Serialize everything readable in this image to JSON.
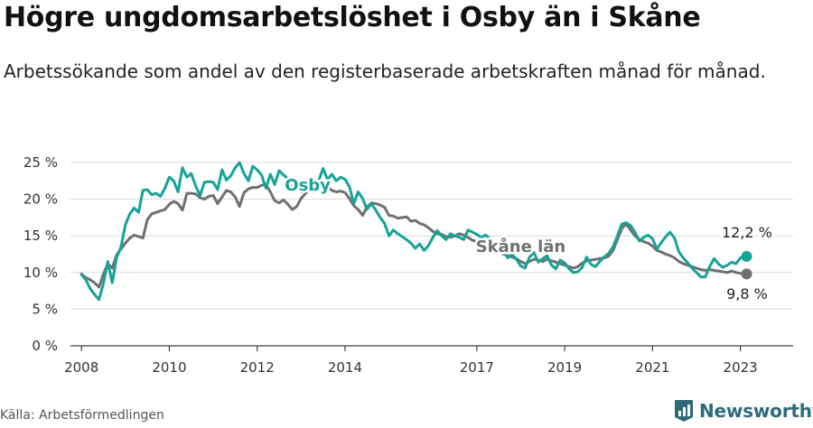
{
  "header": {
    "title": "Högre ungdomsarbetslöshet i Osby än i Skåne",
    "subtitle": "Arbetssökande som andel av den registerbaserade arbetskraften månad för månad."
  },
  "footer": {
    "source": "Källa: Arbetsförmedlingen",
    "brand": "Newsworthy"
  },
  "colors": {
    "osby": "#17a398",
    "skane": "#707070",
    "grid": "#d9d9d9",
    "brand": "#2e6b78"
  },
  "chart_data": {
    "type": "line",
    "title": "Högre ungdomsarbetslöshet i Osby än i Skåne",
    "xlabel": "",
    "ylabel": "",
    "xlim": [
      2007.75,
      2024.2
    ],
    "ylim": [
      0,
      25
    ],
    "y_ticks": [
      0,
      5,
      10,
      15,
      20,
      25
    ],
    "y_tick_labels": [
      "0 %",
      "5 %",
      "10 %",
      "15 %",
      "20 %",
      "25 %"
    ],
    "x_ticks": [
      2008,
      2010,
      2012,
      2014,
      2017,
      2019,
      2021,
      2023
    ],
    "x_tick_labels": [
      "2008",
      "2010",
      "2012",
      "2014",
      "2017",
      "2019",
      "2021",
      "2023"
    ],
    "grid": true,
    "series": [
      {
        "name": "Osby",
        "label": "Osby",
        "end_label": "12,2 %",
        "end_value": 12.2,
        "x": [
          2008.0,
          2008.1,
          2008.2,
          2008.3,
          2008.4,
          2008.5,
          2008.6,
          2008.7,
          2008.8,
          2008.9,
          2009.0,
          2009.1,
          2009.2,
          2009.3,
          2009.4,
          2009.5,
          2009.6,
          2009.7,
          2009.8,
          2009.9,
          2010.0,
          2010.1,
          2010.2,
          2010.3,
          2010.4,
          2010.5,
          2010.6,
          2010.7,
          2010.8,
          2010.9,
          2011.0,
          2011.1,
          2011.2,
          2011.3,
          2011.4,
          2011.5,
          2011.6,
          2011.7,
          2011.8,
          2011.9,
          2012.0,
          2012.1,
          2012.2,
          2012.3,
          2012.4,
          2012.5,
          2012.6,
          2012.7,
          2012.8,
          2012.9,
          2013.0,
          2013.1,
          2013.2,
          2013.3,
          2013.4,
          2013.5,
          2013.6,
          2013.7,
          2013.8,
          2013.9,
          2014.0,
          2014.1,
          2014.2,
          2014.3,
          2014.4,
          2014.5,
          2014.6,
          2014.7,
          2014.8,
          2014.9,
          2015.0,
          2015.1,
          2015.2,
          2015.3,
          2015.4,
          2015.5,
          2015.6,
          2015.7,
          2015.8,
          2015.9,
          2016.0,
          2016.1,
          2016.2,
          2016.3,
          2016.4,
          2016.5,
          2016.6,
          2016.7,
          2016.8,
          2016.9,
          2017.0,
          2017.1,
          2017.2,
          2017.3,
          2017.4,
          2017.5,
          2017.6,
          2017.7,
          2017.8,
          2017.9,
          2018.0,
          2018.1,
          2018.2,
          2018.3,
          2018.4,
          2018.5,
          2018.6,
          2018.7,
          2018.8,
          2018.9,
          2019.0,
          2019.1,
          2019.2,
          2019.3,
          2019.4,
          2019.5,
          2019.6,
          2019.7,
          2019.8,
          2019.9,
          2020.0,
          2020.1,
          2020.2,
          2020.3,
          2020.4,
          2020.5,
          2020.6,
          2020.7,
          2020.8,
          2020.9,
          2021.0,
          2021.1,
          2021.2,
          2021.3,
          2021.4,
          2021.5,
          2021.6,
          2021.7,
          2021.8,
          2021.9,
          2022.0,
          2022.1,
          2022.2,
          2022.3,
          2022.4,
          2022.5,
          2022.6,
          2022.7,
          2022.8,
          2022.9,
          2023.0,
          2023.1
        ],
        "values": [
          9.7,
          9.0,
          7.8,
          7.0,
          6.3,
          8.5,
          11.5,
          8.6,
          12.0,
          13.5,
          16.5,
          18.0,
          18.8,
          18.2,
          21.2,
          21.3,
          20.6,
          20.8,
          20.4,
          21.5,
          23.0,
          22.5,
          21.0,
          24.3,
          23.0,
          23.5,
          21.8,
          20.5,
          22.3,
          22.4,
          22.3,
          21.3,
          24.0,
          22.6,
          23.2,
          24.3,
          25.0,
          23.5,
          22.5,
          24.5,
          24.0,
          23.3,
          21.5,
          23.4,
          22.0,
          23.9,
          23.3,
          22.8,
          21.0,
          21.6,
          21.0,
          22.5,
          22.0,
          22.2,
          22.5,
          24.2,
          22.7,
          23.4,
          22.5,
          23.0,
          22.7,
          21.7,
          19.4,
          21.0,
          20.1,
          18.6,
          19.4,
          18.5,
          17.5,
          16.7,
          15.0,
          15.8,
          15.3,
          14.9,
          14.5,
          14.0,
          13.3,
          13.9,
          13.0,
          13.7,
          14.8,
          15.7,
          15.0,
          14.5,
          15.3,
          15.0,
          14.8,
          14.5,
          15.8,
          15.5,
          15.2,
          14.8,
          15.1,
          14.6,
          13.8,
          12.8,
          13.4,
          12.0,
          12.5,
          11.8,
          10.9,
          10.6,
          12.1,
          12.7,
          11.4,
          11.9,
          12.3,
          11.0,
          10.5,
          11.7,
          11.3,
          10.5,
          10.0,
          10.1,
          10.7,
          12.1,
          11.1,
          10.8,
          11.5,
          12.1,
          12.6,
          13.5,
          15.0,
          16.6,
          16.8,
          16.4,
          15.5,
          14.3,
          14.8,
          15.1,
          14.6,
          13.2,
          14.1,
          14.9,
          15.5,
          14.7,
          12.8,
          12.0,
          11.3,
          10.6,
          10.0,
          9.4,
          9.4,
          10.8,
          11.9,
          11.2,
          10.7,
          11.0,
          11.4,
          11.2,
          12.0,
          12.2
        ]
      },
      {
        "name": "Skåne län",
        "label": "Skåne län",
        "end_label": "9,8 %",
        "end_value": 9.8,
        "x": [
          2008.0,
          2008.1,
          2008.2,
          2008.3,
          2008.4,
          2008.5,
          2008.6,
          2008.7,
          2008.8,
          2008.9,
          2009.0,
          2009.1,
          2009.2,
          2009.3,
          2009.4,
          2009.5,
          2009.6,
          2009.7,
          2009.8,
          2009.9,
          2010.0,
          2010.1,
          2010.2,
          2010.3,
          2010.4,
          2010.5,
          2010.6,
          2010.7,
          2010.8,
          2010.9,
          2011.0,
          2011.1,
          2011.2,
          2011.3,
          2011.4,
          2011.5,
          2011.6,
          2011.7,
          2011.8,
          2011.9,
          2012.0,
          2012.1,
          2012.2,
          2012.3,
          2012.4,
          2012.5,
          2012.6,
          2012.7,
          2012.8,
          2012.9,
          2013.0,
          2013.1,
          2013.2,
          2013.3,
          2013.4,
          2013.5,
          2013.6,
          2013.7,
          2013.8,
          2013.9,
          2014.0,
          2014.1,
          2014.2,
          2014.3,
          2014.4,
          2014.5,
          2014.6,
          2014.7,
          2014.8,
          2014.9,
          2015.0,
          2015.1,
          2015.2,
          2015.3,
          2015.4,
          2015.5,
          2015.6,
          2015.7,
          2015.8,
          2015.9,
          2016.0,
          2016.1,
          2016.2,
          2016.3,
          2016.4,
          2016.5,
          2016.6,
          2016.7,
          2016.8,
          2016.9,
          2017.0,
          2017.1,
          2017.2,
          2017.3,
          2017.4,
          2017.5,
          2017.6,
          2017.7,
          2017.8,
          2017.9,
          2018.0,
          2018.1,
          2018.2,
          2018.3,
          2018.4,
          2018.5,
          2018.6,
          2018.7,
          2018.8,
          2018.9,
          2019.0,
          2019.1,
          2019.2,
          2019.3,
          2019.4,
          2019.5,
          2019.6,
          2019.7,
          2019.8,
          2019.9,
          2020.0,
          2020.1,
          2020.2,
          2020.3,
          2020.4,
          2020.5,
          2020.6,
          2020.7,
          2020.8,
          2020.9,
          2021.0,
          2021.1,
          2021.2,
          2021.3,
          2021.4,
          2021.5,
          2021.6,
          2021.7,
          2021.8,
          2021.9,
          2022.0,
          2022.1,
          2022.2,
          2022.3,
          2022.4,
          2022.5,
          2022.6,
          2022.7,
          2022.8,
          2022.9,
          2023.0,
          2023.1
        ],
        "values": [
          9.8,
          9.3,
          9.0,
          8.6,
          8.0,
          9.8,
          11.2,
          10.6,
          12.4,
          13.2,
          14.0,
          14.7,
          15.1,
          14.9,
          14.7,
          17.2,
          18.0,
          18.2,
          18.4,
          18.6,
          19.3,
          19.7,
          19.4,
          18.5,
          20.8,
          20.8,
          20.7,
          20.2,
          20.0,
          20.4,
          20.5,
          19.4,
          20.3,
          21.2,
          21.0,
          20.3,
          19.0,
          20.9,
          21.4,
          21.6,
          21.6,
          21.9,
          22.0,
          21.0,
          19.8,
          19.5,
          19.9,
          19.3,
          18.6,
          19.0,
          20.1,
          20.8,
          21.5,
          21.0,
          21.7,
          22.0,
          21.7,
          21.2,
          21.0,
          21.1,
          20.9,
          20.1,
          19.1,
          18.6,
          17.8,
          18.9,
          19.5,
          19.4,
          19.2,
          18.9,
          17.8,
          17.7,
          17.4,
          17.5,
          17.6,
          17.0,
          17.1,
          16.7,
          16.5,
          16.1,
          15.6,
          15.3,
          15.2,
          14.9,
          14.8,
          15.0,
          15.3,
          15.1,
          14.8,
          14.4,
          14.2,
          13.9,
          13.5,
          13.3,
          13.2,
          12.9,
          12.5,
          12.3,
          12.1,
          11.9,
          11.5,
          11.2,
          11.5,
          11.8,
          11.7,
          11.5,
          11.8,
          11.6,
          11.4,
          11.2,
          11.0,
          10.8,
          10.6,
          10.8,
          11.3,
          11.6,
          11.7,
          11.8,
          11.9,
          12.0,
          12.2,
          13.0,
          14.5,
          16.0,
          16.6,
          15.8,
          15.0,
          14.5,
          14.2,
          14.0,
          13.6,
          13.0,
          12.8,
          12.5,
          12.3,
          12.0,
          11.5,
          11.2,
          11.0,
          10.8,
          10.6,
          10.4,
          10.3,
          10.4,
          10.3,
          10.2,
          10.1,
          10.0,
          10.2,
          10.0,
          9.9,
          9.8
        ]
      }
    ],
    "annotations": [
      "Osby",
      "Skåne län",
      "12,2 %",
      "9,8 %"
    ]
  }
}
